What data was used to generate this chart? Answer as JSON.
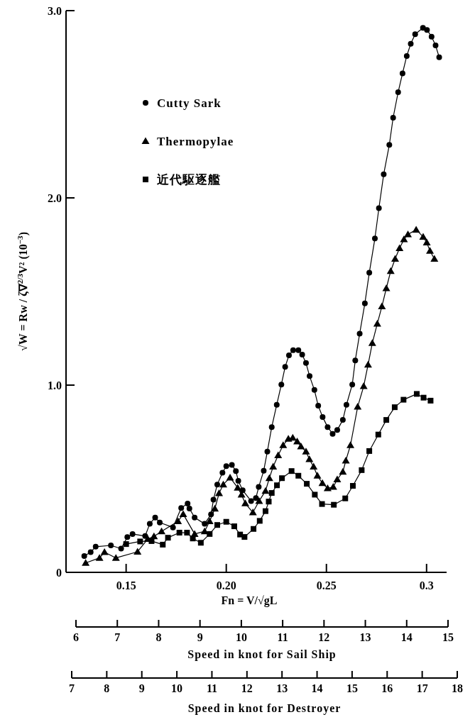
{
  "chart_data": {
    "type": "line",
    "ylabel": "√W = Rw / ζ∇$^{2/3}$V² (10$^{−3}$)",
    "xlabel": "Fn = V/√gL",
    "xlim": [
      0.12,
      0.31
    ],
    "xticks": [
      0.15,
      {
        "value": 0.2,
        "label": "0.20"
      },
      0.25,
      0.3
    ],
    "ylim": [
      0,
      3
    ],
    "yticks": [
      0,
      {
        "value": 1,
        "label": "1.0"
      },
      {
        "value": 2,
        "label": "2.0"
      },
      {
        "value": 3,
        "label": "3.0"
      }
    ],
    "x2lim": [
      6,
      15
    ],
    "x2ticks": [
      6,
      7,
      8,
      9,
      10,
      11,
      12,
      13,
      14,
      15
    ],
    "x2label": "Speed in knot for Sail Ship",
    "legend": "top left",
    "line_style": "solid",
    "series": [
      {
        "name": "Cutty Sark",
        "color": "#000000",
        "marker": "circle",
        "x": [
          0.1291,
          0.1323,
          0.1348,
          0.1424,
          0.1475,
          0.1506,
          0.1532,
          0.1595,
          0.1618,
          0.1645,
          0.1668,
          0.1734,
          0.1775,
          0.1807,
          0.1816,
          0.1842,
          0.1892,
          0.1924,
          0.1936,
          0.1955,
          0.1981,
          0.2,
          0.2028,
          0.2048,
          0.206,
          0.2082,
          0.2124,
          0.2148,
          0.2162,
          0.2187,
          0.2205,
          0.2227,
          0.2252,
          0.2275,
          0.2294,
          0.2313,
          0.2334,
          0.236,
          0.2379,
          0.2398,
          0.2416,
          0.244,
          0.2459,
          0.2481,
          0.2506,
          0.2531,
          0.2554,
          0.2582,
          0.26,
          0.2629,
          0.2644,
          0.2666,
          0.2692,
          0.2714,
          0.2742,
          0.2762,
          0.2786,
          0.2814,
          0.2833,
          0.2858,
          0.288,
          0.2901,
          0.2921,
          0.2943,
          0.2982,
          0.3002,
          0.3025,
          0.3045,
          0.3063
        ],
        "values": [
          0.087,
          0.108,
          0.137,
          0.144,
          0.127,
          0.188,
          0.205,
          0.194,
          0.259,
          0.293,
          0.266,
          0.24,
          0.344,
          0.367,
          0.341,
          0.293,
          0.259,
          0.31,
          0.388,
          0.469,
          0.532,
          0.567,
          0.574,
          0.541,
          0.489,
          0.438,
          0.381,
          0.397,
          0.456,
          0.543,
          0.645,
          0.776,
          0.895,
          1.003,
          1.098,
          1.159,
          1.187,
          1.187,
          1.163,
          1.118,
          1.048,
          0.974,
          0.89,
          0.83,
          0.776,
          0.74,
          0.76,
          0.814,
          0.895,
          1.003,
          1.132,
          1.275,
          1.437,
          1.6,
          1.783,
          1.945,
          2.126,
          2.283,
          2.428,
          2.564,
          2.665,
          2.758,
          2.823,
          2.874,
          2.908,
          2.897,
          2.861,
          2.814,
          2.751
        ]
      },
      {
        "name": "Thermopylae",
        "color": "#000000",
        "marker": "triangle",
        "x": [
          0.1298,
          0.1367,
          0.1392,
          0.1449,
          0.1557,
          0.1608,
          0.1639,
          0.1677,
          0.1759,
          0.1785,
          0.1842,
          0.1892,
          0.1917,
          0.1943,
          0.1964,
          0.1985,
          0.2019,
          0.2057,
          0.2076,
          0.2095,
          0.2133,
          0.2164,
          0.2196,
          0.2215,
          0.2234,
          0.2259,
          0.2284,
          0.231,
          0.2332,
          0.2354,
          0.2373,
          0.2398,
          0.2415,
          0.2436,
          0.2455,
          0.248,
          0.2506,
          0.2534,
          0.2554,
          0.2582,
          0.2597,
          0.262,
          0.2656,
          0.2686,
          0.2708,
          0.2729,
          0.2754,
          0.2777,
          0.2799,
          0.2821,
          0.2843,
          0.2865,
          0.2887,
          0.2907,
          0.2948,
          0.2983,
          0.3001,
          0.3017,
          0.3039
        ],
        "values": [
          0.05,
          0.077,
          0.108,
          0.077,
          0.11,
          0.178,
          0.192,
          0.219,
          0.273,
          0.311,
          0.205,
          0.219,
          0.273,
          0.34,
          0.422,
          0.469,
          0.506,
          0.452,
          0.415,
          0.368,
          0.32,
          0.381,
          0.435,
          0.503,
          0.564,
          0.625,
          0.679,
          0.713,
          0.719,
          0.699,
          0.672,
          0.645,
          0.604,
          0.564,
          0.516,
          0.476,
          0.449,
          0.456,
          0.496,
          0.537,
          0.597,
          0.679,
          0.884,
          0.994,
          1.109,
          1.224,
          1.328,
          1.42,
          1.517,
          1.609,
          1.674,
          1.731,
          1.778,
          1.805,
          1.83,
          1.792,
          1.761,
          1.717,
          1.674
        ]
      },
      {
        "name": "近代駆逐艦",
        "color": "#000000",
        "marker": "square",
        "x": [
          0.15,
          0.157,
          0.1627,
          0.1683,
          0.1709,
          0.1766,
          0.1804,
          0.1833,
          0.1873,
          0.1917,
          0.1955,
          0.2,
          0.204,
          0.2069,
          0.2091,
          0.2136,
          0.2167,
          0.2196,
          0.2212,
          0.2227,
          0.2253,
          0.2278,
          0.2326,
          0.236,
          0.2402,
          0.2442,
          0.2478,
          0.2537,
          0.2594,
          0.2632,
          0.2676,
          0.2714,
          0.2759,
          0.2799,
          0.2841,
          0.2885,
          0.2951,
          0.2985,
          0.302
        ],
        "values": [
          0.151,
          0.165,
          0.167,
          0.148,
          0.185,
          0.212,
          0.212,
          0.181,
          0.158,
          0.205,
          0.253,
          0.27,
          0.246,
          0.202,
          0.189,
          0.232,
          0.275,
          0.327,
          0.378,
          0.424,
          0.465,
          0.503,
          0.541,
          0.516,
          0.473,
          0.415,
          0.365,
          0.361,
          0.395,
          0.462,
          0.546,
          0.648,
          0.736,
          0.814,
          0.882,
          0.922,
          0.953,
          0.933,
          0.917
        ]
      }
    ],
    "annotations": [
      "7",
      "8",
      "9",
      "10",
      "11",
      "12",
      "13",
      "14",
      "15",
      "16",
      "17",
      "18",
      "Speed in knot for Destroyer"
    ]
  }
}
